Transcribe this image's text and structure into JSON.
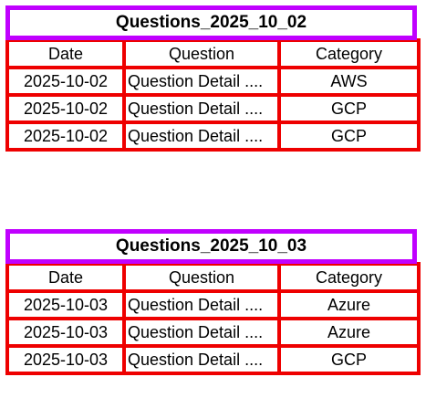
{
  "tables": [
    {
      "title": "Questions_2025_10_02",
      "headers": [
        "Date",
        "Question",
        "Category"
      ],
      "rows": [
        [
          "2025-10-02",
          "Question Detail ....",
          "AWS"
        ],
        [
          "2025-10-02",
          "Question Detail ....",
          "GCP"
        ],
        [
          "2025-10-02",
          "Question Detail ....",
          "GCP"
        ]
      ]
    },
    {
      "title": "Questions_2025_10_03",
      "headers": [
        "Date",
        "Question",
        "Category"
      ],
      "rows": [
        [
          "2025-10-03",
          "Question Detail ....",
          "Azure"
        ],
        [
          "2025-10-03",
          "Question Detail ....",
          "Azure"
        ],
        [
          "2025-10-03",
          "Question Detail ....",
          "GCP"
        ]
      ]
    }
  ],
  "colors": {
    "title_border": "#c000ff",
    "cell_border": "#ee0000"
  }
}
